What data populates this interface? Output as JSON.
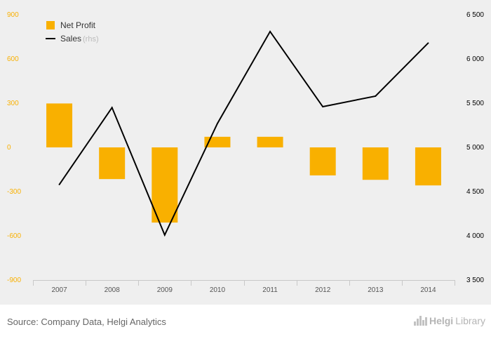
{
  "chart_data": {
    "type": "bar",
    "title": "",
    "categories": [
      "2007",
      "2008",
      "2009",
      "2010",
      "2011",
      "2012",
      "2013",
      "2014"
    ],
    "series": [
      {
        "name": "Net Profit",
        "type": "bar",
        "axis": "left",
        "color": "#f9b000",
        "values": [
          298,
          -215,
          -510,
          72,
          72,
          -190,
          -220,
          -258
        ]
      },
      {
        "name": "Sales",
        "name_suffix": "(rhs)",
        "type": "line",
        "axis": "right",
        "color": "#000000",
        "values": [
          4580,
          5450,
          4010,
          5270,
          6310,
          5460,
          5580,
          6180
        ]
      }
    ],
    "y_left": {
      "min": -900,
      "max": 900,
      "ticks": [
        "900",
        "600",
        "300",
        "0",
        "-300",
        "-600",
        "-900"
      ],
      "tick_values": [
        900,
        600,
        300,
        0,
        -300,
        -600,
        -900
      ],
      "color": "#f9b000"
    },
    "y_right": {
      "min": 3500,
      "max": 6500,
      "ticks": [
        "6 500",
        "6 000",
        "5 500",
        "5 000",
        "4 500",
        "4 000",
        "3 500"
      ],
      "tick_values": [
        6500,
        6000,
        5500,
        5000,
        4500,
        4000,
        3500
      ],
      "color": "#000000"
    },
    "legend_position": "top-left"
  },
  "footer": {
    "source": "Source: Company Data, Helgi Analytics",
    "logo_part1": "Helgi",
    "logo_part2": "Library"
  }
}
